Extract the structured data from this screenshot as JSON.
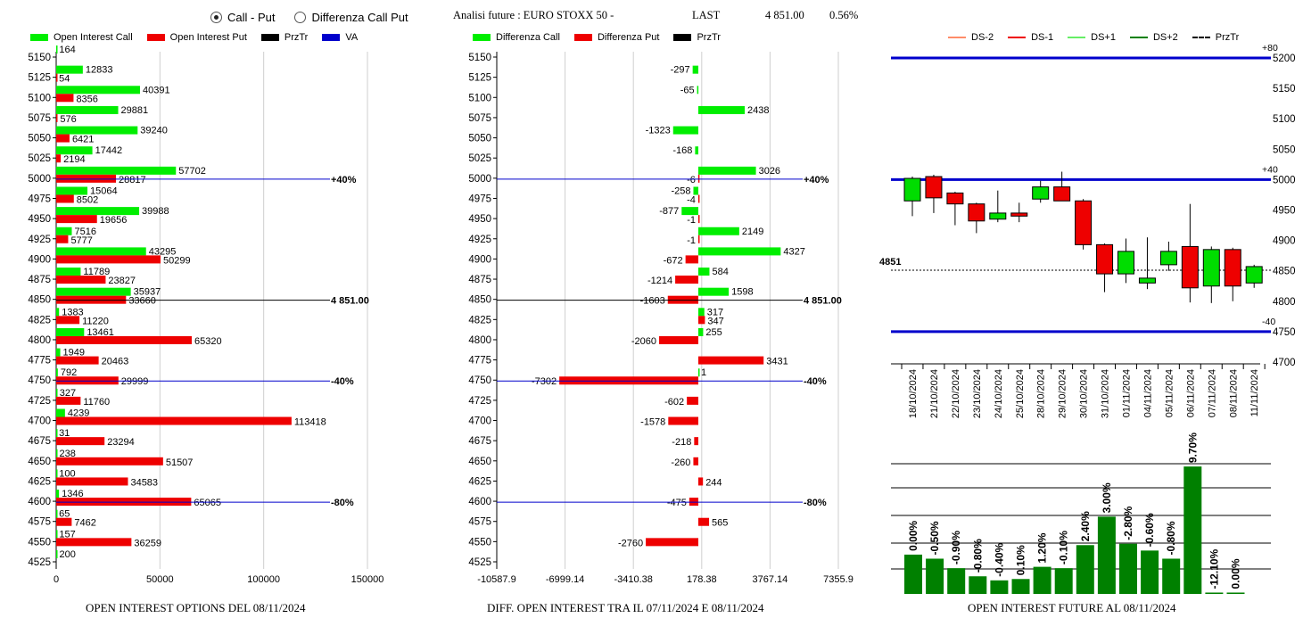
{
  "controls": {
    "radio_call_put": "Call - Put",
    "radio_diff": "Differenza Call Put",
    "selected": "call_put"
  },
  "header": {
    "title": "Analisi future : EURO STOXX 50 -",
    "last_label": "LAST",
    "last_value": "4 851.00",
    "change_pct": "0.56%"
  },
  "colors": {
    "call": "#00ee00",
    "put": "#ee0000",
    "przTr": "#000000",
    "va": "#0000cc",
    "candle_up": "#00dd00",
    "candle_down": "#ee0000",
    "oi_bar": "#008000"
  },
  "footers": {
    "left": "OPEN INTEREST OPTIONS DEL 08/11/2024",
    "middle": "DIFF. OPEN INTEREST TRA IL 07/11/2024 E 08/11/2024",
    "right": "OPEN INTEREST FUTURE AL 08/11/2024"
  },
  "chart_data": [
    {
      "type": "bar",
      "orientation": "horizontal",
      "legend": [
        "Open Interest Call",
        "Open Interest Put",
        "PrzTr",
        "VA"
      ],
      "strikes": [
        5150,
        5125,
        5100,
        5075,
        5050,
        5025,
        5000,
        4975,
        4950,
        4925,
        4900,
        4875,
        4850,
        4825,
        4800,
        4775,
        4750,
        4725,
        4700,
        4675,
        4650,
        4625,
        4600,
        4575,
        4550,
        4525
      ],
      "series": [
        {
          "name": "Open Interest Call",
          "values": [
            164,
            12833,
            40391,
            29881,
            39240,
            17442,
            57702,
            15064,
            39988,
            7516,
            43295,
            11789,
            35937,
            1383,
            13461,
            1949,
            792,
            327,
            4239,
            31,
            238,
            100,
            1346,
            65,
            157,
            200
          ]
        },
        {
          "name": "Open Interest Put",
          "values": [
            null,
            54,
            8356,
            576,
            6421,
            2194,
            28817,
            8502,
            19656,
            5777,
            50299,
            23827,
            33660,
            11220,
            65320,
            20463,
            29999,
            11760,
            113418,
            23294,
            51507,
            34583,
            65065,
            7462,
            36259,
            null
          ]
        }
      ],
      "x_ticks": [
        "0",
        "50000",
        "100000",
        "150000"
      ],
      "xlim": [
        0,
        150000
      ],
      "ref_lines": [
        {
          "strike": 5000,
          "label": "+40%",
          "color": "blue"
        },
        {
          "strike": 4850,
          "label": "4 851.00",
          "color": "black"
        },
        {
          "strike": 4750,
          "label": "-40%",
          "color": "blue"
        },
        {
          "strike": 4600,
          "label": "-80%",
          "color": "blue"
        }
      ]
    },
    {
      "type": "bar",
      "orientation": "horizontal",
      "legend": [
        "Differenza Call",
        "Differenza Put",
        "PrzTr"
      ],
      "strikes": [
        5150,
        5125,
        5100,
        5075,
        5050,
        5025,
        5000,
        4975,
        4950,
        4925,
        4900,
        4875,
        4850,
        4825,
        4800,
        4775,
        4750,
        4725,
        4700,
        4675,
        4650,
        4625,
        4600,
        4575,
        4550,
        4525
      ],
      "series": [
        {
          "name": "Differenza Call",
          "values": [
            null,
            -297,
            -65,
            2438,
            -1323,
            -168,
            3026,
            -258,
            -877,
            2149,
            4327,
            584,
            1598,
            317,
            255,
            null,
            1,
            null,
            null,
            null,
            null,
            null,
            null,
            null,
            null,
            null
          ]
        },
        {
          "name": "Differenza Put",
          "values": [
            null,
            null,
            null,
            null,
            null,
            null,
            -6,
            -4,
            -1,
            -1,
            -672,
            -1214,
            -1603,
            347,
            -2060,
            3431,
            -7302,
            -602,
            -1578,
            -218,
            -260,
            244,
            -475,
            565,
            -2760,
            null
          ]
        }
      ],
      "x_ticks": [
        "-10587.9",
        "-6999.14",
        "-3410.38",
        "178.38",
        "3767.14",
        "7355.9"
      ],
      "xlim": [
        -10587.9,
        7355.9
      ],
      "ref_lines": [
        {
          "strike": 5000,
          "label": "+40%",
          "color": "blue"
        },
        {
          "strike": 4850,
          "label": "4 851.00",
          "color": "black"
        },
        {
          "strike": 4750,
          "label": "-40%",
          "color": "blue"
        },
        {
          "strike": 4600,
          "label": "-80%",
          "color": "blue"
        }
      ]
    },
    {
      "type": "candlestick",
      "legend": [
        "DS-2",
        "DS-1",
        "DS+1",
        "DS+2",
        "PrzTr"
      ],
      "dates": [
        "18/10/2024",
        "21/10/2024",
        "22/10/2024",
        "23/10/2024",
        "24/10/2024",
        "25/10/2024",
        "28/10/2024",
        "29/10/2024",
        "30/10/2024",
        "31/10/2024",
        "01/11/2024",
        "04/11/2024",
        "05/11/2024",
        "06/11/2024",
        "07/11/2024",
        "08/11/2024",
        "11/11/2024"
      ],
      "candles": [
        {
          "open": 4965,
          "high": 5005,
          "low": 4940,
          "close": 5002
        },
        {
          "open": 5005,
          "high": 5008,
          "low": 4945,
          "close": 4970
        },
        {
          "open": 4978,
          "high": 4980,
          "low": 4925,
          "close": 4960
        },
        {
          "open": 4960,
          "high": 4962,
          "low": 4912,
          "close": 4932
        },
        {
          "open": 4935,
          "high": 4982,
          "low": 4930,
          "close": 4945
        },
        {
          "open": 4945,
          "high": 4962,
          "low": 4930,
          "close": 4940
        },
        {
          "open": 4968,
          "high": 4998,
          "low": 4962,
          "close": 4988
        },
        {
          "open": 4988,
          "high": 5013,
          "low": 4965,
          "close": 4965
        },
        {
          "open": 4965,
          "high": 4968,
          "low": 4885,
          "close": 4893
        },
        {
          "open": 4893,
          "high": 4895,
          "low": 4815,
          "close": 4845
        },
        {
          "open": 4845,
          "high": 4903,
          "low": 4830,
          "close": 4882
        },
        {
          "open": 4830,
          "high": 4905,
          "low": 4820,
          "close": 4838
        },
        {
          "open": 4860,
          "high": 4898,
          "low": 4850,
          "close": 4882
        },
        {
          "open": 4890,
          "high": 4960,
          "low": 4798,
          "close": 4822
        },
        {
          "open": 4825,
          "high": 4890,
          "low": 4797,
          "close": 4885
        },
        {
          "open": 4885,
          "high": 4888,
          "low": 4800,
          "close": 4825
        },
        {
          "open": 4830,
          "high": 4860,
          "low": 4822,
          "close": 4857
        }
      ],
      "y_ticks": [
        "5200",
        "5150",
        "5100",
        "5050",
        "5000",
        "4950",
        "4900",
        "4850",
        "4800",
        "4750",
        "4700"
      ],
      "ylim": [
        4700,
        5200
      ],
      "price_label": "4851",
      "price": 4851,
      "band_lines": [
        {
          "value": 5200,
          "label": "+80"
        },
        {
          "value": 5000,
          "label": "+40"
        },
        {
          "value": 4750,
          "label": "-40"
        }
      ]
    },
    {
      "type": "bar",
      "categories": [
        "18/10/2024",
        "21/10/2024",
        "22/10/2024",
        "23/10/2024",
        "24/10/2024",
        "25/10/2024",
        "28/10/2024",
        "29/10/2024",
        "30/10/2024",
        "31/10/2024",
        "01/11/2024",
        "04/11/2024",
        "05/11/2024",
        "06/11/2024",
        "07/11/2024",
        "08/11/2024"
      ],
      "values": [
        29,
        26,
        19,
        13,
        10,
        11,
        20,
        19,
        36,
        57,
        37,
        32,
        26,
        94,
        1,
        1
      ],
      "labels": [
        "0.00%",
        "-0.50%",
        "-0.90%",
        "-0.80%",
        "-0.40%",
        "0.10%",
        "1.20%",
        "-0.10%",
        "2.40%",
        "3.00%",
        "-2.80%",
        "-0.60%",
        "-0.80%",
        "9.70%",
        "-12.10%",
        "0.00%"
      ],
      "grid": true
    }
  ]
}
